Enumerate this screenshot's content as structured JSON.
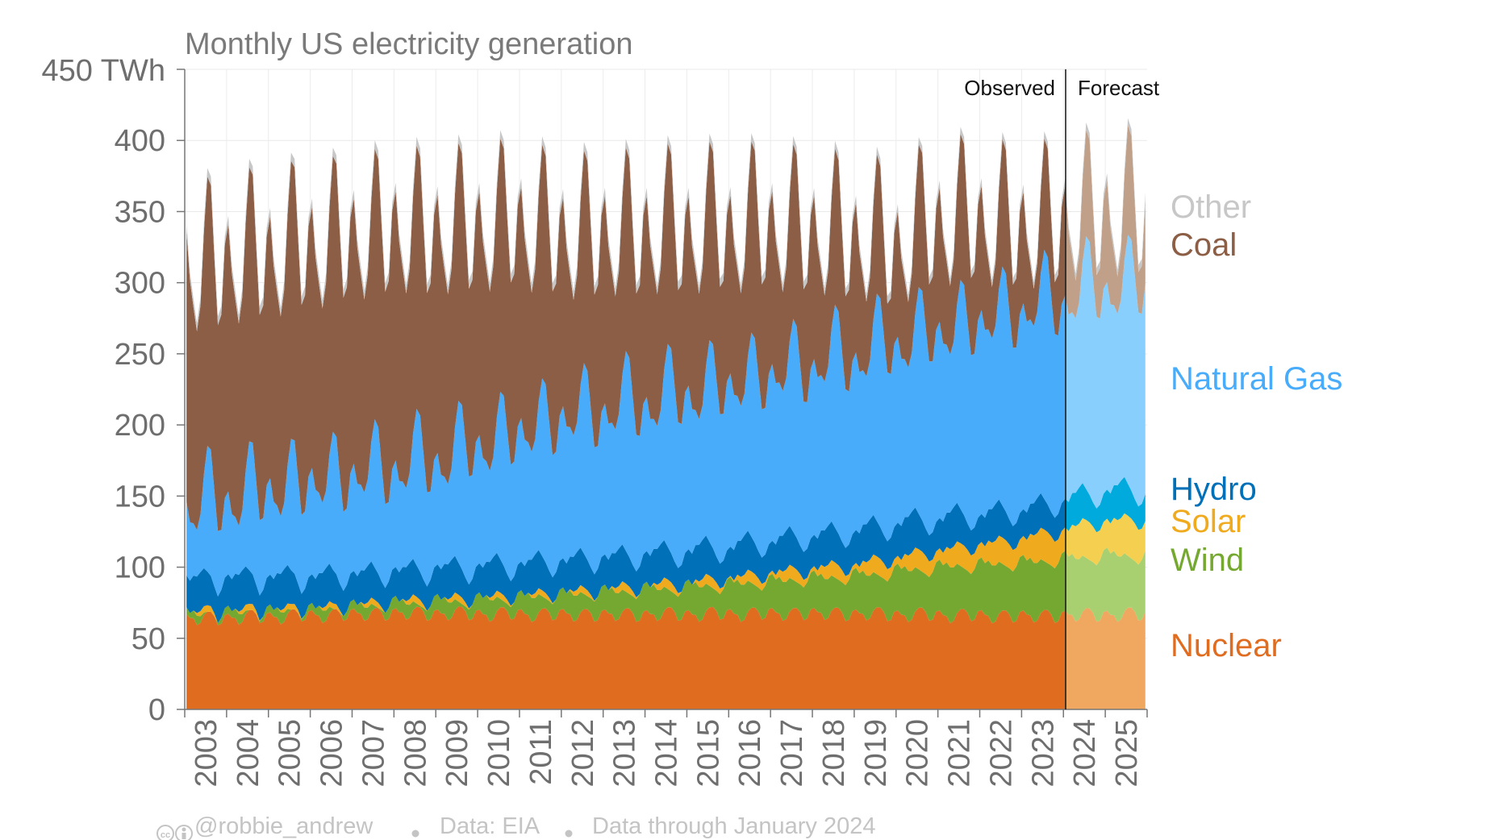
{
  "chart_data": {
    "type": "area",
    "title": "Monthly US electricity generation",
    "unit": "TWh",
    "y_tick_top": "450 TWh",
    "ylim": [
      0,
      450
    ],
    "y_ticks": [
      "0",
      "50",
      "100",
      "150",
      "200",
      "250",
      "300",
      "350",
      "400"
    ],
    "x_ticks": [
      "2003",
      "2004",
      "2005",
      "2006",
      "2007",
      "2008",
      "2009",
      "2010",
      "2011",
      "2012",
      "2013",
      "2014",
      "2015",
      "2016",
      "2017",
      "2018",
      "2019",
      "2020",
      "2021",
      "2022",
      "2023",
      "2024",
      "2025"
    ],
    "x_range": [
      "2003-01",
      "2025-12"
    ],
    "grid": true,
    "stacked": true,
    "observed_label": "Observed",
    "forecast_label": "Forecast",
    "forecast_start": "2024-01",
    "series": [
      {
        "name": "Nuclear",
        "color": "#e06c20",
        "forecast_color": "#f0a860",
        "anchors": {
          "2003": 63,
          "2008": 67,
          "2013": 66,
          "2018": 67,
          "2023": 65,
          "2025": 66
        },
        "seasonal_amplitude": 5
      },
      {
        "name": "Wind",
        "color": "#75a830",
        "forecast_color": "#a8d070",
        "anchors": {
          "2003": 1,
          "2006": 2,
          "2008": 5,
          "2010": 8,
          "2013": 14,
          "2016": 19,
          "2019": 25,
          "2021": 32,
          "2023": 36,
          "2025": 40
        },
        "seasonal_amplitude": 6
      },
      {
        "name": "Solar",
        "color": "#f0aa1e",
        "forecast_color": "#f5d050",
        "anchors": {
          "2003": 0,
          "2011": 0.5,
          "2013": 1,
          "2015": 2.5,
          "2017": 5,
          "2019": 7,
          "2021": 11,
          "2023": 16,
          "2025": 24
        },
        "seasonal_amplitude": 4
      },
      {
        "name": "Hydro",
        "color": "#0070b8",
        "forecast_color": "#00aadc",
        "anchors": {
          "2003": 23,
          "2008": 21,
          "2012": 22,
          "2016": 22,
          "2020": 24,
          "2023": 20,
          "2025": 21
        },
        "seasonal_amplitude": 5
      },
      {
        "name": "Natural Gas",
        "color": "#48acfa",
        "forecast_color": "#88cffe",
        "anchors": {
          "2003": 52,
          "2006": 68,
          "2009": 78,
          "2012": 102,
          "2015": 112,
          "2018": 122,
          "2021": 132,
          "2023": 142,
          "2025": 145
        },
        "seasonal_amplitude": 30
      },
      {
        "name": "Coal",
        "color": "#8b5e45",
        "forecast_color": "#c0a088",
        "anchors": {
          "2003": 164,
          "2008": 164,
          "2011": 144,
          "2012": 125,
          "2015": 112,
          "2017": 101,
          "2019": 80,
          "2020": 65,
          "2021": 75,
          "2022": 68,
          "2023": 55,
          "2025": 48
        },
        "seasonal_amplitude": 28
      },
      {
        "name": "Other",
        "color": "#c7c7c7",
        "forecast_color": "#c7c7c7",
        "anchors": {
          "2003": 6,
          "2013": 6,
          "2023": 5,
          "2025": 5
        },
        "seasonal_amplitude": 1
      }
    ],
    "legend": [
      "Other",
      "Coal",
      "Natural Gas",
      "Hydro",
      "Solar",
      "Wind",
      "Nuclear"
    ]
  },
  "footer": {
    "license_icon": "creative-commons-by-icon",
    "author": "@robbie_andrew",
    "source": "Data: EIA",
    "through": "Data through January 2024"
  }
}
